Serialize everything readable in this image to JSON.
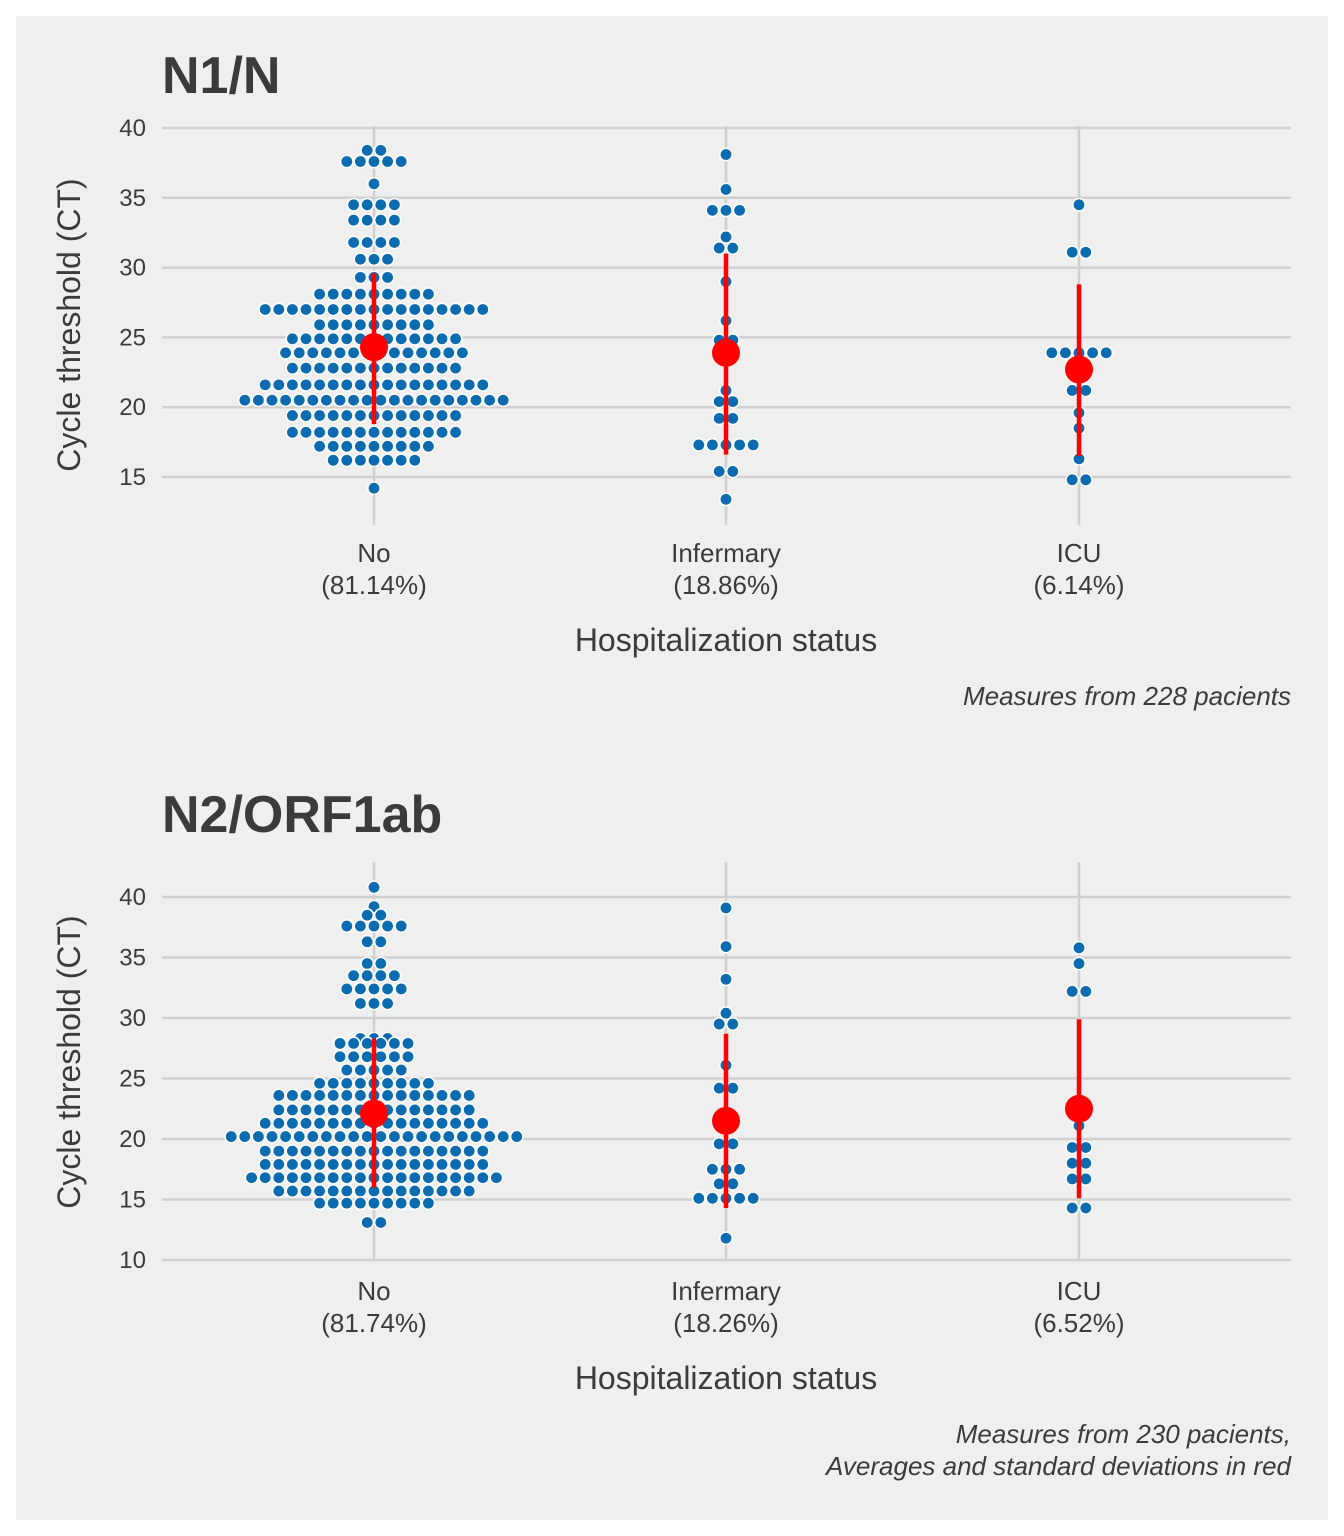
{
  "chart_data": [
    {
      "type": "scatter",
      "subtype": "beeswarm-with-mean-sd",
      "title": "N1/N",
      "ylabel": "Cycle threshold (CT)",
      "xlabel": "Hospitalization status",
      "categories": [
        "No",
        "Infermary",
        "ICU"
      ],
      "category_pct": [
        "(81.14%)",
        "(18.86%)",
        "(6.14%)"
      ],
      "ylim": [
        11.5,
        40.5
      ],
      "yticks": [
        15,
        20,
        25,
        30,
        35,
        40
      ],
      "grid": true,
      "point_color": "#0b6bb0",
      "summary_color": "#ff0000",
      "summary": [
        {
          "category": "No",
          "mean": 24.3,
          "sd_low": 18.8,
          "sd_high": 29.6
        },
        {
          "category": "Infermary",
          "mean": 23.9,
          "sd_low": 16.6,
          "sd_high": 31.0
        },
        {
          "category": "ICU",
          "mean": 22.7,
          "sd_low": 16.5,
          "sd_high": 28.8
        }
      ],
      "groups": [
        {
          "category": "No",
          "rows": [
            {
              "y": 38.4,
              "n": 2
            },
            {
              "y": 37.6,
              "n": 5
            },
            {
              "y": 36.0,
              "n": 1
            },
            {
              "y": 34.5,
              "n": 4
            },
            {
              "y": 33.4,
              "n": 4
            },
            {
              "y": 31.8,
              "n": 4
            },
            {
              "y": 30.6,
              "n": 3
            },
            {
              "y": 29.3,
              "n": 3
            },
            {
              "y": 28.1,
              "n": 9
            },
            {
              "y": 27.0,
              "n": 17
            },
            {
              "y": 25.9,
              "n": 9
            },
            {
              "y": 24.9,
              "n": 13
            },
            {
              "y": 23.9,
              "n": 14
            },
            {
              "y": 22.8,
              "n": 13
            },
            {
              "y": 21.6,
              "n": 17
            },
            {
              "y": 20.5,
              "n": 20
            },
            {
              "y": 19.4,
              "n": 13
            },
            {
              "y": 18.2,
              "n": 13
            },
            {
              "y": 17.2,
              "n": 9
            },
            {
              "y": 16.2,
              "n": 7
            },
            {
              "y": 14.2,
              "n": 1
            }
          ]
        },
        {
          "category": "Infermary",
          "rows": [
            {
              "y": 38.1,
              "n": 1
            },
            {
              "y": 35.6,
              "n": 1
            },
            {
              "y": 34.1,
              "n": 3
            },
            {
              "y": 32.2,
              "n": 1
            },
            {
              "y": 31.4,
              "n": 2
            },
            {
              "y": 29.0,
              "n": 1
            },
            {
              "y": 26.2,
              "n": 1
            },
            {
              "y": 24.8,
              "n": 2
            },
            {
              "y": 23.9,
              "n": 1
            },
            {
              "y": 21.2,
              "n": 1
            },
            {
              "y": 20.4,
              "n": 2
            },
            {
              "y": 19.2,
              "n": 2
            },
            {
              "y": 17.3,
              "n": 5
            },
            {
              "y": 15.4,
              "n": 2
            },
            {
              "y": 13.4,
              "n": 1
            }
          ]
        },
        {
          "category": "ICU",
          "rows": [
            {
              "y": 34.5,
              "n": 1
            },
            {
              "y": 31.1,
              "n": 2
            },
            {
              "y": 23.9,
              "n": 5
            },
            {
              "y": 22.4,
              "n": 2
            },
            {
              "y": 21.2,
              "n": 2
            },
            {
              "y": 19.6,
              "n": 1
            },
            {
              "y": 18.5,
              "n": 1
            },
            {
              "y": 16.3,
              "n": 1
            },
            {
              "y": 14.8,
              "n": 2
            }
          ]
        }
      ],
      "caption": [
        "Measures from 228 pacients"
      ]
    },
    {
      "type": "scatter",
      "subtype": "beeswarm-with-mean-sd",
      "title": "N2/ORF1ab",
      "ylabel": "Cycle threshold (CT)",
      "xlabel": "Hospitalization status",
      "categories": [
        "No",
        "Infermary",
        "ICU"
      ],
      "category_pct": [
        "(81.74%)",
        "(18.26%)",
        "(6.52%)"
      ],
      "ylim": [
        10,
        43
      ],
      "yticks": [
        10,
        15,
        20,
        25,
        30,
        35,
        40
      ],
      "grid": true,
      "point_color": "#0b6bb0",
      "summary_color": "#ff0000",
      "summary": [
        {
          "category": "No",
          "mean": 22.1,
          "sd_low": 16.0,
          "sd_high": 28.3
        },
        {
          "category": "Infermary",
          "mean": 21.5,
          "sd_low": 14.3,
          "sd_high": 28.7
        },
        {
          "category": "ICU",
          "mean": 22.5,
          "sd_low": 15.1,
          "sd_high": 29.9
        }
      ],
      "groups": [
        {
          "category": "No",
          "rows": [
            {
              "y": 40.8,
              "n": 1
            },
            {
              "y": 39.2,
              "n": 1
            },
            {
              "y": 38.5,
              "n": 2
            },
            {
              "y": 37.6,
              "n": 5
            },
            {
              "y": 36.3,
              "n": 2
            },
            {
              "y": 34.5,
              "n": 2
            },
            {
              "y": 33.5,
              "n": 4
            },
            {
              "y": 32.4,
              "n": 5
            },
            {
              "y": 31.2,
              "n": 3
            },
            {
              "y": 28.3,
              "n": 3
            },
            {
              "y": 27.9,
              "n": 6
            },
            {
              "y": 26.8,
              "n": 6
            },
            {
              "y": 25.7,
              "n": 5
            },
            {
              "y": 24.6,
              "n": 9
            },
            {
              "y": 23.6,
              "n": 15
            },
            {
              "y": 22.4,
              "n": 15
            },
            {
              "y": 21.3,
              "n": 17
            },
            {
              "y": 20.2,
              "n": 22
            },
            {
              "y": 19.0,
              "n": 17
            },
            {
              "y": 17.9,
              "n": 17
            },
            {
              "y": 16.8,
              "n": 19
            },
            {
              "y": 15.7,
              "n": 15
            },
            {
              "y": 14.7,
              "n": 9
            },
            {
              "y": 13.1,
              "n": 2
            }
          ]
        },
        {
          "category": "Infermary",
          "rows": [
            {
              "y": 39.1,
              "n": 1
            },
            {
              "y": 35.9,
              "n": 1
            },
            {
              "y": 33.2,
              "n": 1
            },
            {
              "y": 30.4,
              "n": 1
            },
            {
              "y": 29.5,
              "n": 2
            },
            {
              "y": 26.1,
              "n": 1
            },
            {
              "y": 24.2,
              "n": 2
            },
            {
              "y": 21.2,
              "n": 2
            },
            {
              "y": 19.6,
              "n": 2
            },
            {
              "y": 17.5,
              "n": 3
            },
            {
              "y": 16.3,
              "n": 2
            },
            {
              "y": 15.1,
              "n": 5
            },
            {
              "y": 11.8,
              "n": 1
            }
          ]
        },
        {
          "category": "ICU",
          "rows": [
            {
              "y": 35.8,
              "n": 1
            },
            {
              "y": 34.5,
              "n": 1
            },
            {
              "y": 32.2,
              "n": 2
            },
            {
              "y": 21.1,
              "n": 1
            },
            {
              "y": 19.3,
              "n": 2
            },
            {
              "y": 18.0,
              "n": 2
            },
            {
              "y": 16.7,
              "n": 2
            },
            {
              "y": 14.3,
              "n": 2
            }
          ]
        }
      ],
      "caption": [
        "Measures from 230 pacients,",
        "Averages and standard deviations in red"
      ]
    }
  ]
}
